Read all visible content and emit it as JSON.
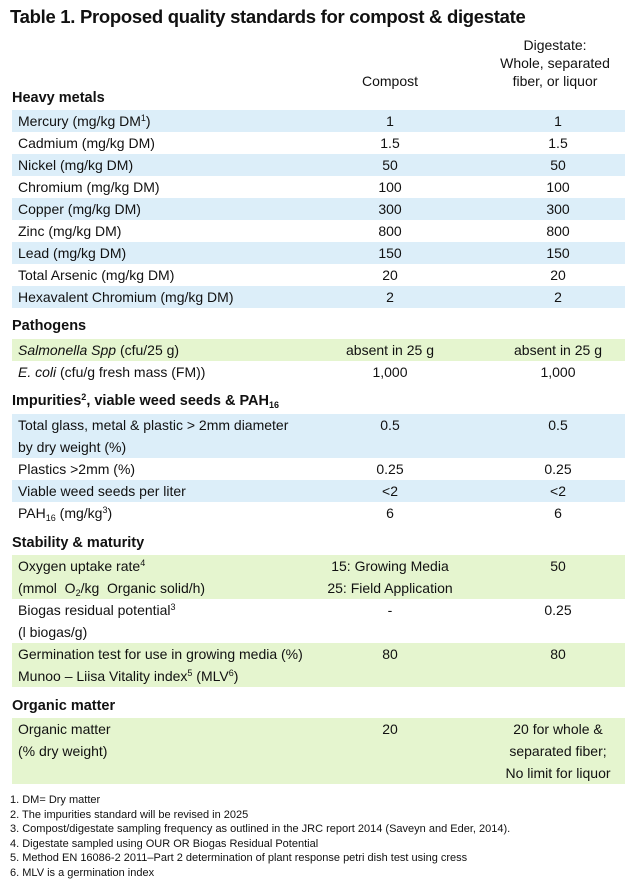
{
  "title": "Table 1. Proposed quality standards for compost & digestate",
  "columns": {
    "compost": "Compost",
    "digestate": [
      "Digestate:",
      "Whole, separated",
      "fiber, or liquor"
    ]
  },
  "sections": {
    "heavy_metals": "Heavy metals",
    "pathogens": "Pathogens",
    "impurities": {
      "pre": "Impurities",
      "sup": "2",
      "mid": ", viable weed seeds & PAH",
      "sub": "16"
    },
    "stability": "Stability & maturity",
    "organic": "Organic matter"
  },
  "heavy_metals": [
    {
      "label": "Mercury (mg/kg DM",
      "sup": "1",
      "label_end": ")",
      "compost": "1",
      "digestate": "1"
    },
    {
      "label": "Cadmium (mg/kg DM)",
      "compost": "1.5",
      "digestate": "1.5"
    },
    {
      "label": "Nickel (mg/kg DM)",
      "compost": "50",
      "digestate": "50"
    },
    {
      "label": "Chromium (mg/kg DM)",
      "compost": "100",
      "digestate": "100"
    },
    {
      "label": "Copper (mg/kg DM)",
      "compost": "300",
      "digestate": "300"
    },
    {
      "label": "Zinc (mg/kg DM)",
      "compost": "800",
      "digestate": "800"
    },
    {
      "label": "Lead (mg/kg DM)",
      "compost": "150",
      "digestate": "150"
    },
    {
      "label": "Total Arsenic (mg/kg DM)",
      "compost": "20",
      "digestate": "20"
    },
    {
      "label": "Hexavalent Chromium (mg/kg DM)",
      "compost": "2",
      "digestate": "2"
    }
  ],
  "pathogens": [
    {
      "label_italic": "Salmonella Spp",
      "label": " (cfu/25 g)",
      "compost": "absent in 25 g",
      "digestate": "absent in 25 g"
    },
    {
      "label_italic": "E. coli",
      "label": " (cfu/g fresh mass (FM))",
      "compost": "1,000",
      "digestate": "1,000"
    }
  ],
  "impurities": [
    {
      "line1": "Total glass, metal & plastic > 2mm diameter",
      "line2": "by dry weight (%)",
      "compost": "0.5",
      "digestate": "0.5"
    },
    {
      "label": "Plastics >2mm (%)",
      "compost": "0.25",
      "digestate": "0.25"
    },
    {
      "label": "Viable weed seeds per liter",
      "compost": "<2",
      "digestate": "<2"
    },
    {
      "label_pre": "PAH",
      "sub": "16",
      "label_mid": " (mg/kg",
      "sup": "3",
      "label_end": ")",
      "compost": "6",
      "digestate": "6"
    }
  ],
  "stability": [
    {
      "line1": "Oxygen uptake rate",
      "line1_sup": "4",
      "line2_pre": "(mmol  O",
      "line2_sub": "2",
      "line2_end": "/kg  Organic solid/h)",
      "compost_1": "15: Growing Media",
      "compost_2": "25: Field Application",
      "digestate": "50"
    },
    {
      "line1": "Biogas residual potential",
      "line1_sup": "3",
      "line2": "(l biogas/g)",
      "compost": "-",
      "digestate": "0.25"
    },
    {
      "line1": "Germination test for use in growing media (%)",
      "line2_pre": "Munoo – Liisa Vitality index",
      "line2_sup": "5",
      "line2_mid": " (MLV",
      "line2_sup2": "6",
      "line2_end": ")",
      "compost": "80",
      "digestate": "80"
    }
  ],
  "organic": {
    "line1": "Organic matter",
    "line2": "(% dry weight)",
    "compost": "20",
    "digestate": [
      "20 for whole &",
      "separated fiber;",
      "No limit for liquor"
    ]
  },
  "footnotes": [
    "1. DM= Dry matter",
    "2. The impurities standard will be revised in 2025",
    "3. Compost/digestate sampling frequency as outlined in the JRC report 2014 (Saveyn and Eder, 2014).",
    "4. Digestate sampled using OUR OR Biogas Residual Potential",
    "5. Method EN 16086-2 2011–Part 2 determination of plant response petri dish test using cress",
    "6. MLV is a germination index"
  ],
  "colors": {
    "blue_row": "#dceef9",
    "green_row": "#e5f5cf"
  }
}
